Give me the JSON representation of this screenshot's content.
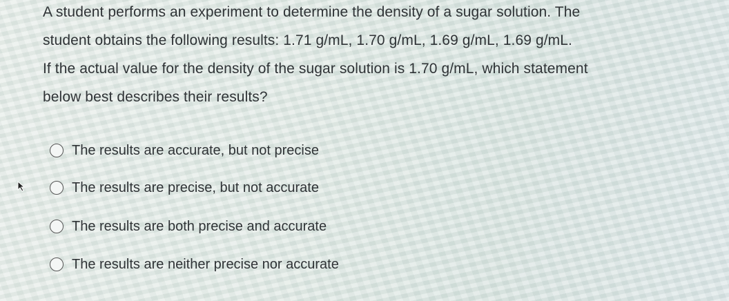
{
  "question": {
    "lines": [
      "A student performs an experiment to determine the density of a sugar solution.  The",
      "student obtains the following results:  1.71 g/mL, 1.70 g/mL, 1.69 g/mL, 1.69 g/mL.",
      "If the actual value for the density of the sugar solution is 1.70 g/mL, which statement",
      "below best describes their results?"
    ]
  },
  "options": [
    "The results are accurate, but not precise",
    "The results are precise, but not accurate",
    "The results are both precise and accurate",
    "The results are neither precise nor accurate"
  ]
}
